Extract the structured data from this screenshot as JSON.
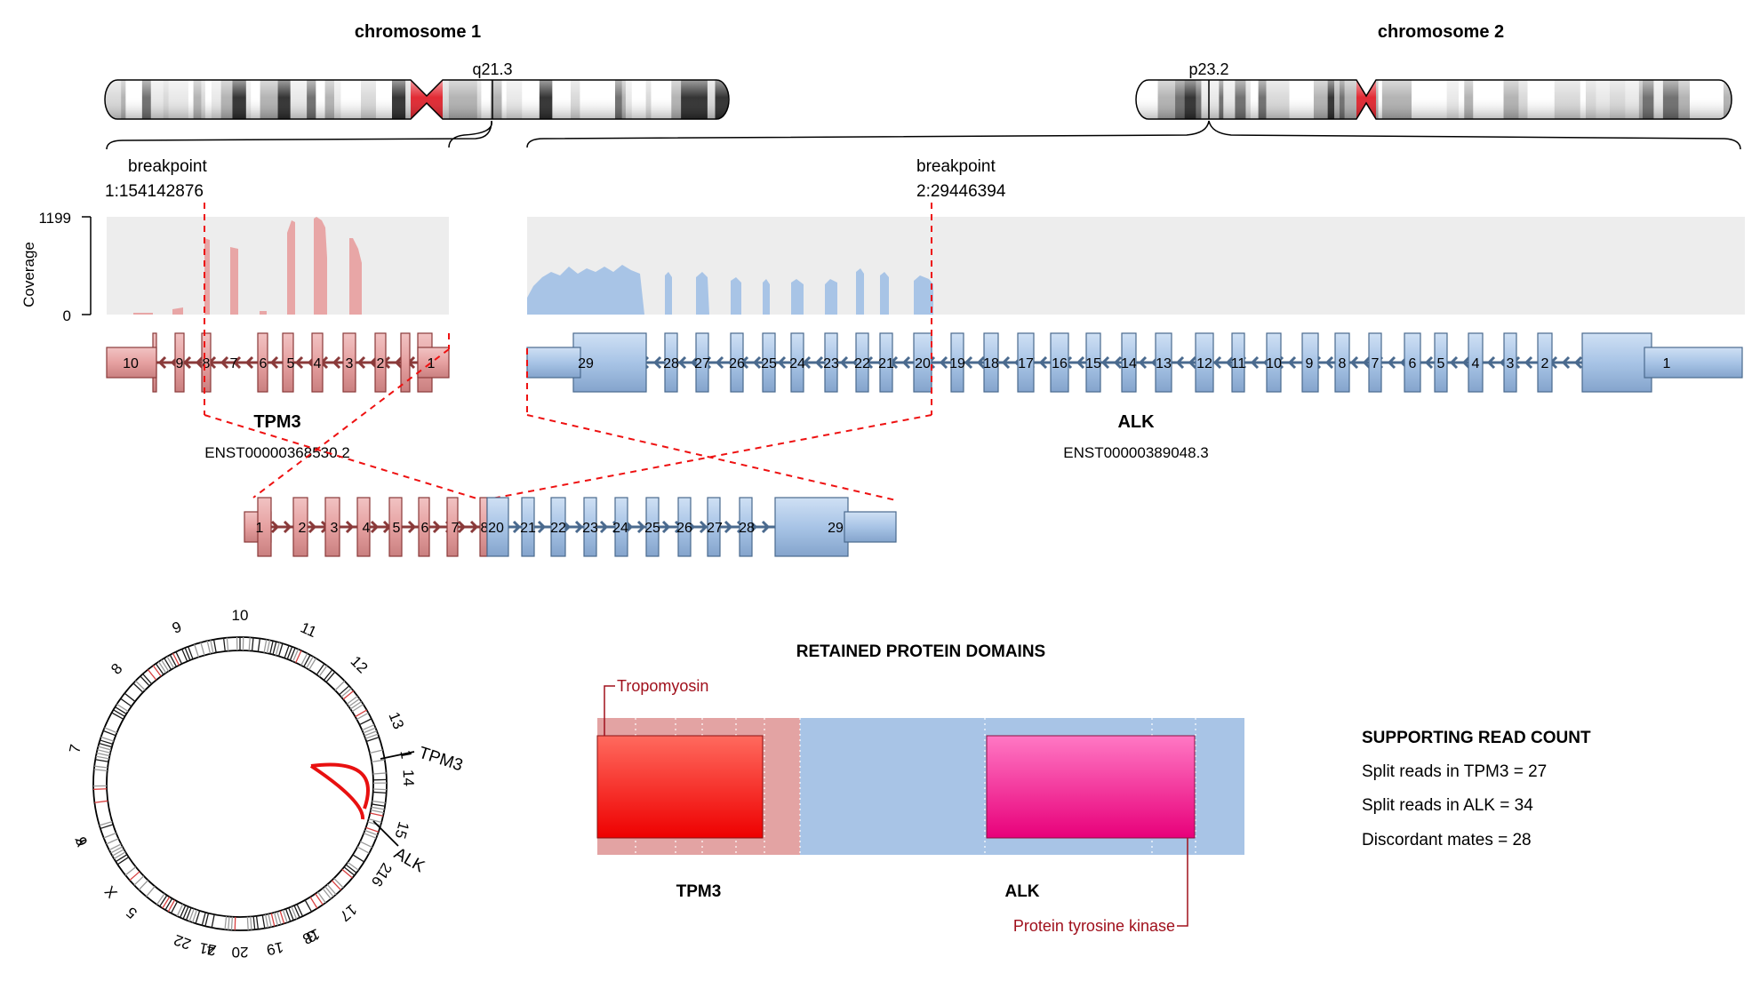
{
  "chromosomes": {
    "chr1": {
      "title": "chromosome 1",
      "band": "q21.3"
    },
    "chr2": {
      "title": "chromosome 2",
      "band": "p23.2"
    }
  },
  "breakpoints": {
    "left": {
      "label": "breakpoint",
      "position": "1:154142876"
    },
    "right": {
      "label": "breakpoint",
      "position": "2:29446394"
    }
  },
  "coverage": {
    "axis_label": "Coverage",
    "max_label": "1199",
    "min_label": "0"
  },
  "genes": {
    "tpm3": {
      "name": "TPM3",
      "transcript": "ENST00000368530.2",
      "exons": [
        "10",
        "9",
        "8",
        "7",
        "6",
        "5",
        "4",
        "3",
        "2",
        "1"
      ]
    },
    "alk": {
      "name": "ALK",
      "transcript": "ENST00000389048.3",
      "exons": [
        "29",
        "28",
        "27",
        "26",
        "25",
        "24",
        "23",
        "22",
        "21",
        "20",
        "19",
        "18",
        "17",
        "16",
        "15",
        "14",
        "13",
        "12",
        "11",
        "10",
        "9",
        "8",
        "7",
        "6",
        "5",
        "4",
        "3",
        "2",
        "1"
      ]
    }
  },
  "fusion_exons": {
    "tpm3": [
      "1",
      "2",
      "3",
      "4",
      "5",
      "6",
      "7",
      "8"
    ],
    "alk": [
      "20",
      "21",
      "22",
      "23",
      "24",
      "25",
      "26",
      "27",
      "28",
      "29"
    ]
  },
  "circos": {
    "chromosome_labels": [
      "1",
      "2",
      "3",
      "4",
      "5",
      "6",
      "7",
      "8",
      "9",
      "10",
      "11",
      "12",
      "13",
      "14",
      "15",
      "16",
      "17",
      "18",
      "19",
      "20",
      "21",
      "22",
      "X",
      "Y"
    ],
    "gene_labels": [
      "TPM3",
      "ALK"
    ]
  },
  "protein": {
    "title": "RETAINED PROTEIN DOMAINS",
    "gene_labels": [
      "TPM3",
      "ALK"
    ],
    "domains": [
      "Tropomyosin",
      "Protein tyrosine kinase"
    ]
  },
  "reads": {
    "title": "SUPPORTING READ COUNT",
    "lines": [
      "Split reads in TPM3 = 27",
      "Split reads in ALK = 34",
      "Discordant mates = 28"
    ]
  },
  "colors": {
    "tpm3": "#e6a1a1",
    "tpm3_stroke": "#8a3a3a",
    "alk": "#a8c4e6",
    "alk_stroke": "#4a6a8e",
    "tropomyosin_domain": "#ee2222",
    "kinase_domain": "#ee1a8a",
    "breakpoint": "#ee1111",
    "domain_label": "#a0101c"
  }
}
